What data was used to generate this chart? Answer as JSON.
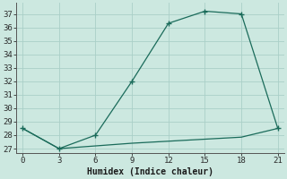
{
  "xlabel": "Humidex (Indice chaleur)",
  "x": [
    0,
    3,
    6,
    9,
    12,
    15,
    18,
    21
  ],
  "y_upper": [
    28.5,
    27.0,
    28.0,
    32.0,
    36.3,
    37.2,
    37.0,
    28.5
  ],
  "y_lower": [
    28.5,
    27.0,
    27.2,
    27.4,
    27.55,
    27.7,
    27.85,
    28.5
  ],
  "line_color": "#1a6b5a",
  "bg_color": "#cce8e0",
  "grid_color": "#aacfc8",
  "ylim": [
    26.7,
    37.8
  ],
  "xlim": [
    -0.5,
    21.5
  ],
  "yticks": [
    27,
    28,
    29,
    30,
    31,
    32,
    33,
    34,
    35,
    36,
    37
  ],
  "xticks": [
    0,
    3,
    6,
    9,
    12,
    15,
    18,
    21
  ]
}
